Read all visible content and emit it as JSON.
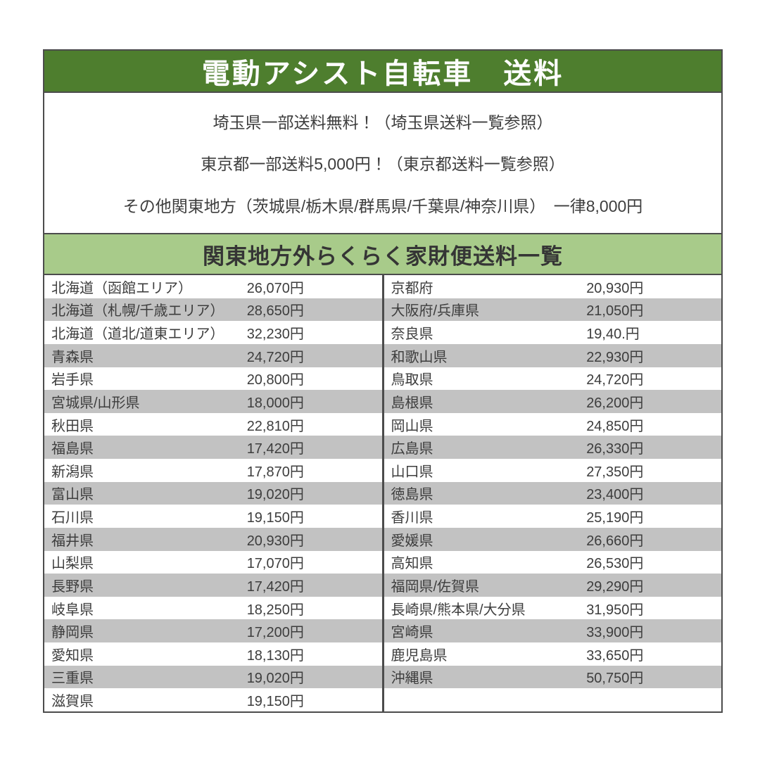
{
  "header": {
    "title": "電動アシスト自転車　送料"
  },
  "promo": {
    "lines": [
      "埼玉県一部送料無料！（埼玉県送料一覧参照）",
      "東京都一部送料5,000円！（東京都送料一覧参照）",
      "その他関東地方（茨城県/栃木県/群馬県/千葉県/神奈川県）　一律8,000円"
    ]
  },
  "section": {
    "title": "関東地方外らくらく家財便送料一覧"
  },
  "table": {
    "left_rows": [
      {
        "name": "北海道（函館エリア）",
        "price": "26,070円"
      },
      {
        "name": "北海道（札幌/千歳エリア）",
        "price": "28,650円"
      },
      {
        "name": "北海道（道北/道東エリア）",
        "price": "32,230円"
      },
      {
        "name": "青森県",
        "price": "24,720円"
      },
      {
        "name": "岩手県",
        "price": "20,800円"
      },
      {
        "name": "宮城県/山形県",
        "price": "18,000円"
      },
      {
        "name": "秋田県",
        "price": "22,810円"
      },
      {
        "name": "福島県",
        "price": "17,420円"
      },
      {
        "name": "新潟県",
        "price": "17,870円"
      },
      {
        "name": "富山県",
        "price": "19,020円"
      },
      {
        "name": "石川県",
        "price": "19,150円"
      },
      {
        "name": "福井県",
        "price": "20,930円"
      },
      {
        "name": "山梨県",
        "price": "17,070円"
      },
      {
        "name": "長野県",
        "price": "17,420円"
      },
      {
        "name": "岐阜県",
        "price": "18,250円"
      },
      {
        "name": "静岡県",
        "price": "17,200円"
      },
      {
        "name": "愛知県",
        "price": "18,130円"
      },
      {
        "name": "三重県",
        "price": "19,020円"
      },
      {
        "name": "滋賀県",
        "price": "19,150円"
      }
    ],
    "right_rows": [
      {
        "name": "京都府",
        "price": "20,930円"
      },
      {
        "name": "大阪府/兵庫県",
        "price": "21,050円"
      },
      {
        "name": "奈良県",
        "price": "19,40.円"
      },
      {
        "name": "和歌山県",
        "price": "22,930円"
      },
      {
        "name": "鳥取県",
        "price": "24,720円"
      },
      {
        "name": "島根県",
        "price": "26,200円"
      },
      {
        "name": "岡山県",
        "price": "24,850円"
      },
      {
        "name": "広島県",
        "price": "26,330円"
      },
      {
        "name": "山口県",
        "price": "27,350円"
      },
      {
        "name": "徳島県",
        "price": "23,400円"
      },
      {
        "name": "香川県",
        "price": "25,190円"
      },
      {
        "name": "愛媛県",
        "price": "26,660円"
      },
      {
        "name": "高知県",
        "price": "26,530円"
      },
      {
        "name": "福岡県/佐賀県",
        "price": "29,290円"
      },
      {
        "name": "長崎県/熊本県/大分県",
        "price": "31,950円"
      },
      {
        "name": "宮崎県",
        "price": "33,900円"
      },
      {
        "name": "鹿児島県",
        "price": "33,650円"
      },
      {
        "name": "沖縄県",
        "price": "50,750円"
      },
      {
        "name": "",
        "price": ""
      }
    ]
  },
  "colors": {
    "header_bg": "#4e7e2e",
    "section_bg": "#a8cb8a",
    "alt_row_bg": "#c2c2c2",
    "border": "#4c4c4c",
    "text": "#3d3d3d",
    "title_text": "#fdfdfd"
  }
}
